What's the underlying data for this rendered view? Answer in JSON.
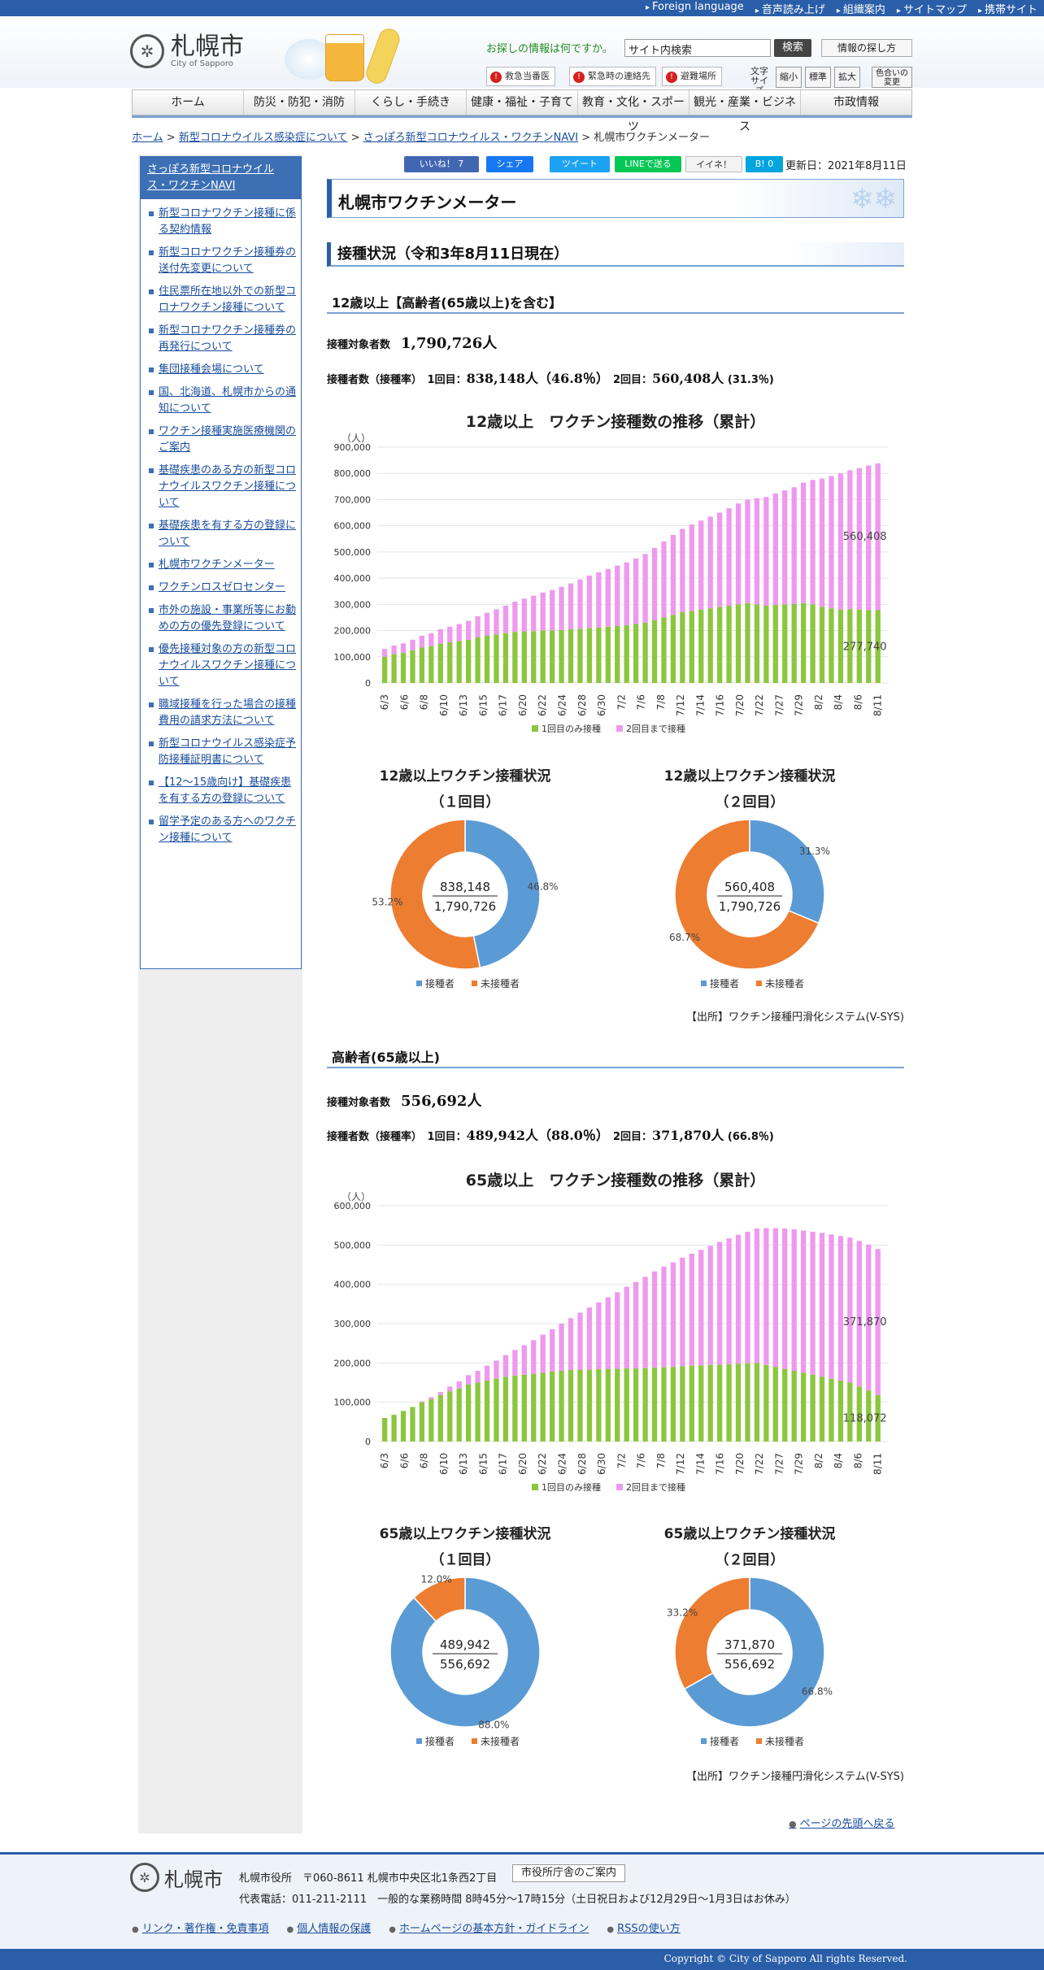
{
  "topbar": [
    "Foreign language",
    "音声読み上げ",
    "組織案内",
    "サイトマップ",
    "携帯サイト"
  ],
  "logo": {
    "name": "札幌市",
    "sub": "City of Sapporo"
  },
  "search": {
    "question": "お探しの情報は何ですか。",
    "placeholder": "サイト内検索",
    "button": "検索",
    "info_button": "情報の探し方"
  },
  "emergency": [
    "救急当番医",
    "緊急時の連絡先",
    "避難場所"
  ],
  "font_size": {
    "label": "文字サイズ",
    "small": "縮小",
    "normal": "標準",
    "large": "拡大",
    "color": "色合いの変更"
  },
  "nav": [
    "ホーム",
    "防災・防犯・消防",
    "くらし・手続き",
    "健康・福祉・子育て",
    "教育・文化・スポーツ",
    "観光・産業・ビジネス",
    "市政情報"
  ],
  "breadcrumb": {
    "home": "ホーム",
    "c1": "新型コロナウイルス感染症について",
    "c2": "さっぽろ新型コロナウイルス・ワクチンNAVI",
    "current": "札幌市ワクチンメーター",
    "sep": ">"
  },
  "sidebar": {
    "title": "さっぽろ新型コロナウイルス・ワクチンNAVI",
    "items": [
      "新型コロナワクチン接種に係る契約情報",
      "新型コロナワクチン接種券の送付先変更について",
      "住民票所在地以外での新型コロナワクチン接種について",
      "新型コロナワクチン接種券の再発行について",
      "集団接種会場について",
      "国、北海道、札幌市からの通知について",
      "ワクチン接種実施医療機関のご案内",
      "基礎疾患のある方の新型コロナウイルスワクチン接種について",
      "基礎疾患を有する方の登録について",
      "札幌市ワクチンメーター",
      "ワクチンロスゼロセンター",
      "市外の施設・事業所等にお勤めの方の優先登録について",
      "優先接種対象の方の新型コロナウイルスワクチン接種について",
      "職域接種を行った場合の接種費用の請求方法について",
      "新型コロナウイルス感染症予防接種証明書について",
      "【12～15歳向け】基礎疾患を有する方の登録について",
      "留学予定のある方へのワクチン接種について"
    ]
  },
  "social": {
    "like": "いいね！ 7",
    "share": "シェア",
    "tweet": "ツイート",
    "line": "LINEで送る",
    "mixi": "イイネ！",
    "hatena": "B! 0"
  },
  "updated": "更新日：2021年8月11日",
  "page_title": "札幌市ワクチンメーター",
  "status_title": "接種状況（令和3年8月11日現在）",
  "sections": [
    {
      "heading": "12歳以上【高齢者(65歳以上)を含む】",
      "target_label": "接種対象者数",
      "target": "1,790,726人",
      "count_label": "接種者数（接種率）",
      "first_label": "1回目：",
      "first": "838,148人（46.8％）",
      "second_label": "2回目：",
      "second": "560,408人",
      "second_rate": "(31.3％)"
    },
    {
      "heading": "高齢者(65歳以上)",
      "target_label": "接種対象者数",
      "target": "556,692人",
      "count_label": "接種者数（接種率）",
      "first_label": "1回目：",
      "first": "489,942人（88.0％）",
      "second_label": "2回目：",
      "second": "371,870人",
      "second_rate": "(66.8％)"
    }
  ],
  "source": "【出所】ワクチン接種円滑化システム(V-SYS)",
  "back_to_top": "ページの先頭へ戻る",
  "footer": {
    "name": "札幌市",
    "office": "札幌市役所　〒060-8611 札幌市中央区北1条西2丁目",
    "guide_button": "市役所庁舎のご案内",
    "tel": "代表電話：011-211-2111　一般的な業務時間 8時45分～17時15分（土日祝日および12月29日～1月3日はお休み）",
    "links": [
      "リンク・著作権・免責事項",
      "個人情報の保護",
      "ホームページの基本方針・ガイドライン",
      "RSSの使い方"
    ],
    "copyright": "Copyright © City of Sapporo All rights Reserved."
  },
  "colors": {
    "first_only": "#8cc63f",
    "second": "#ee99ee",
    "vaccinated": "#5b9bd5",
    "unvaccinated": "#ed7d31",
    "brand": "#2a5ea8"
  },
  "chart_data": [
    {
      "type": "bar",
      "title": "12歳以上　ワクチン接種数の推移（累計）",
      "ylabel": "（人）",
      "ylim": [
        0,
        900000
      ],
      "yticks": [
        "900,000",
        "800,000",
        "700,000",
        "600,000",
        "500,000",
        "400,000",
        "300,000",
        "200,000",
        "100,000",
        "0"
      ],
      "xticks": [
        "6/3",
        "6/6",
        "6/8",
        "6/10",
        "6/13",
        "6/15",
        "6/17",
        "6/20",
        "6/22",
        "6/24",
        "6/28",
        "6/30",
        "7/2",
        "7/6",
        "7/8",
        "7/12",
        "7/14",
        "7/16",
        "7/20",
        "7/22",
        "7/27",
        "7/29",
        "8/2",
        "8/4",
        "8/6",
        "8/11"
      ],
      "series": [
        {
          "name": "1回目のみ接種",
          "values": [
            100000,
            110000,
            115000,
            125000,
            135000,
            140000,
            150000,
            155000,
            160000,
            165000,
            175000,
            180000,
            185000,
            190000,
            195000,
            197000,
            198000,
            200000,
            200000,
            202000,
            205000,
            207000,
            210000,
            212000,
            215000,
            218000,
            220000,
            225000,
            230000,
            240000,
            250000,
            260000,
            270000,
            275000,
            280000,
            285000,
            290000,
            295000,
            300000,
            305000,
            300000,
            295000,
            298000,
            300000,
            302000,
            305000,
            300000,
            290000,
            285000,
            280000,
            282000,
            280000,
            278000,
            277740
          ]
        },
        {
          "name": "2回目まで接種",
          "values": [
            30000,
            33000,
            36000,
            40000,
            45000,
            50000,
            55000,
            60000,
            65000,
            72000,
            80000,
            88000,
            96000,
            105000,
            115000,
            125000,
            135000,
            145000,
            155000,
            165000,
            175000,
            188000,
            200000,
            210000,
            220000,
            230000,
            240000,
            250000,
            262000,
            275000,
            290000,
            305000,
            318000,
            330000,
            340000,
            350000,
            360000,
            372000,
            385000,
            395000,
            405000,
            415000,
            425000,
            435000,
            445000,
            460000,
            475000,
            490000,
            505000,
            520000,
            530000,
            540000,
            552000,
            560408
          ]
        }
      ],
      "labels": {
        "first_only_end": "277,740",
        "second_end": "560,408"
      }
    },
    {
      "type": "pie",
      "title": "12歳以上ワクチン接種状況",
      "subtitle": "（１回目）",
      "center_top": "838,148",
      "center_bottom": "1,790,726",
      "slices": [
        {
          "name": "接種者",
          "value": 46.8,
          "label": "46.8%"
        },
        {
          "name": "未接種者",
          "value": 53.2,
          "label": "53.2%"
        }
      ]
    },
    {
      "type": "pie",
      "title": "12歳以上ワクチン接種状況",
      "subtitle": "（２回目）",
      "center_top": "560,408",
      "center_bottom": "1,790,726",
      "slices": [
        {
          "name": "接種者",
          "value": 31.3,
          "label": "31.3%"
        },
        {
          "name": "未接種者",
          "value": 68.7,
          "label": "68.7%"
        }
      ]
    },
    {
      "type": "bar",
      "title": "65歳以上　ワクチン接種数の推移（累計）",
      "ylabel": "（人）",
      "ylim": [
        0,
        600000
      ],
      "yticks": [
        "600,000",
        "500,000",
        "400,000",
        "300,000",
        "200,000",
        "100,000",
        "0"
      ],
      "xticks": [
        "6/3",
        "6/6",
        "6/8",
        "6/10",
        "6/13",
        "6/15",
        "6/17",
        "6/20",
        "6/22",
        "6/24",
        "6/28",
        "6/30",
        "7/2",
        "7/6",
        "7/8",
        "7/12",
        "7/14",
        "7/16",
        "7/20",
        "7/22",
        "7/27",
        "7/29",
        "8/2",
        "8/4",
        "8/6",
        "8/11"
      ],
      "series": [
        {
          "name": "1回目のみ接種",
          "values": [
            60000,
            68000,
            78000,
            88000,
            100000,
            108000,
            118000,
            128000,
            135000,
            145000,
            150000,
            155000,
            160000,
            165000,
            168000,
            170000,
            172000,
            175000,
            178000,
            180000,
            182000,
            183000,
            183000,
            184000,
            185000,
            185000,
            186000,
            186000,
            187000,
            188000,
            189000,
            190000,
            192000,
            193000,
            194000,
            195000,
            196000,
            197000,
            198000,
            199000,
            200000,
            195000,
            190000,
            185000,
            180000,
            175000,
            170000,
            165000,
            160000,
            155000,
            150000,
            140000,
            130000,
            118072
          ]
        },
        {
          "name": "2回目まで接種",
          "values": [
            0,
            0,
            0,
            0,
            2000,
            5000,
            8000,
            12000,
            18000,
            24000,
            30000,
            38000,
            46000,
            55000,
            65000,
            75000,
            86000,
            97000,
            108000,
            120000,
            132000,
            145000,
            158000,
            170000,
            182000,
            195000,
            208000,
            220000,
            232000,
            245000,
            256000,
            266000,
            276000,
            285000,
            294000,
            303000,
            312000,
            320000,
            328000,
            335000,
            342000,
            348000,
            353000,
            357000,
            360000,
            362000,
            364000,
            366000,
            367000,
            368000,
            369000,
            370000,
            371000,
            371870
          ]
        }
      ],
      "labels": {
        "first_only_end": "118,072",
        "second_end": "371,870"
      }
    },
    {
      "type": "pie",
      "title": "65歳以上ワクチン接種状況",
      "subtitle": "（１回目）",
      "center_top": "489,942",
      "center_bottom": "556,692",
      "slices": [
        {
          "name": "接種者",
          "value": 88.0,
          "label": "88.0%"
        },
        {
          "name": "未接種者",
          "value": 12.0,
          "label": "12.0%"
        }
      ]
    },
    {
      "type": "pie",
      "title": "65歳以上ワクチン接種状況",
      "subtitle": "（２回目）",
      "center_top": "371,870",
      "center_bottom": "556,692",
      "slices": [
        {
          "name": "接種者",
          "value": 66.8,
          "label": "66.8%"
        },
        {
          "name": "未接種者",
          "value": 33.2,
          "label": "33.2%"
        }
      ]
    }
  ]
}
